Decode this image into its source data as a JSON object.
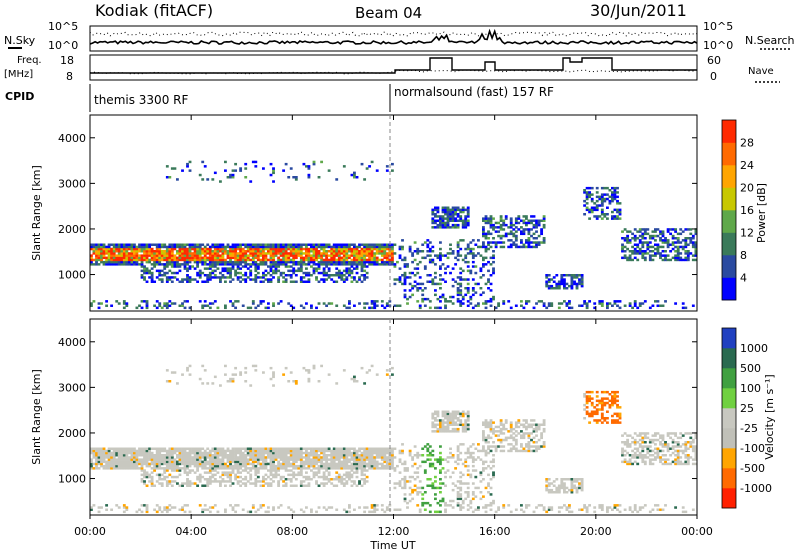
{
  "header": {
    "station": "Kodiak (fitACF)",
    "beam": "Beam 04",
    "date": "30/Jun/2011"
  },
  "left_labels": {
    "nsky": "N.Sky",
    "freq": "Freq.",
    "freq_unit": "[MHz]",
    "cpid": "CPID"
  },
  "right_labels": {
    "nsearch": "N.Search",
    "nave": "Nave"
  },
  "small_axes": {
    "noise_left_ticks": [
      "10^5",
      "10^0"
    ],
    "noise_right_ticks": [
      "10^5",
      "10^0"
    ],
    "freq_left_ticks": [
      "18",
      "8"
    ],
    "nave_right_ticks": [
      "60",
      "0"
    ]
  },
  "cpid_modes": [
    {
      "label": "themis 3300 RF",
      "start_hour": 0
    },
    {
      "label": "normalsound (fast) 157 RF",
      "start_hour": 12
    }
  ],
  "colors": {
    "power_scale": [
      "#0000ff",
      "#2a4aa0",
      "#3a7a5a",
      "#5fa84a",
      "#c8c800",
      "#ffa500",
      "#ff6a00",
      "#ff2a00"
    ],
    "velocity_scale": [
      "#2040c0",
      "#2a6a50",
      "#40a040",
      "#70d040",
      "#c8c8c0",
      "#c0c0b8",
      "#ffa500",
      "#ff6a00",
      "#ff2000"
    ]
  },
  "chart_data": [
    {
      "type": "heatmap",
      "panel": "power",
      "ylabel": "Slant Range [km]",
      "yticks": [
        "1000",
        "2000",
        "3000",
        "4000"
      ],
      "ylim": [
        200,
        4500
      ],
      "xlim_hours": [
        0,
        24
      ],
      "colorbar": {
        "label": "Power [dB]",
        "ticks": [
          "4",
          "8",
          "12",
          "16",
          "20",
          "24",
          "28"
        ],
        "range": [
          0,
          30
        ]
      }
    },
    {
      "type": "heatmap",
      "panel": "velocity",
      "ylabel": "Slant Range [km]",
      "yticks": [
        "1000",
        "2000",
        "3000",
        "4000"
      ],
      "ylim": [
        200,
        4500
      ],
      "xlim_hours": [
        0,
        24
      ],
      "colorbar": {
        "label": "Velocity [m s⁻¹]",
        "ticks": [
          "1000",
          "500",
          "100",
          "25",
          "-25",
          "-100",
          "-500",
          "-1000"
        ]
      }
    }
  ],
  "xaxis": {
    "ticks": [
      "00:00",
      "04:00",
      "08:00",
      "12:00",
      "16:00",
      "20:00",
      "00:00"
    ],
    "label": "Time UT"
  }
}
